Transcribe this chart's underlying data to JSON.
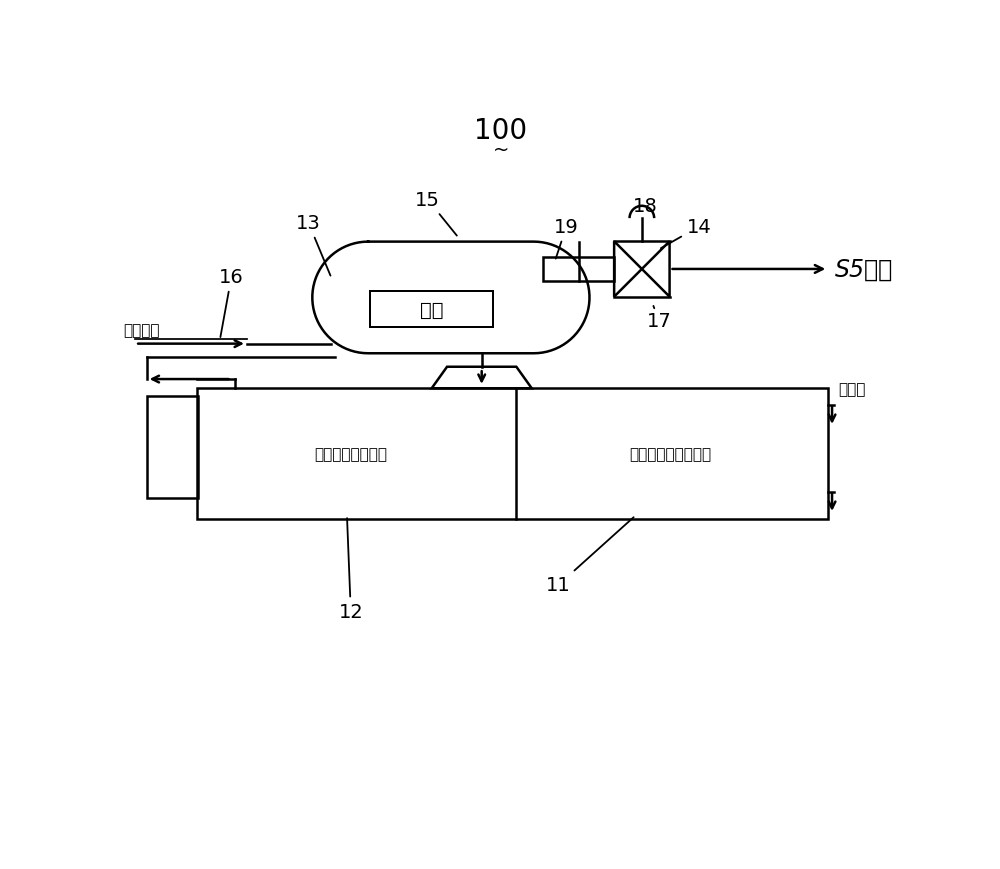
{
  "bg_color": "#ffffff",
  "line_color": "#000000",
  "fig_width": 10.0,
  "fig_height": 8.7,
  "labels": {
    "steam_drum": "汽包",
    "section1": "冷渣机證汽回收段",
    "section2": "冷渣机循環水冷卻段",
    "water_supply": "汽包補水",
    "circulating_water": "循環水",
    "steam_out": "S5蝉汽",
    "num_100": "100",
    "num_11": "11",
    "num_12": "12",
    "num_13": "13",
    "num_14": "14",
    "num_15": "15",
    "num_16": "16",
    "num_17": "17",
    "num_18": "18",
    "num_19": "19"
  }
}
